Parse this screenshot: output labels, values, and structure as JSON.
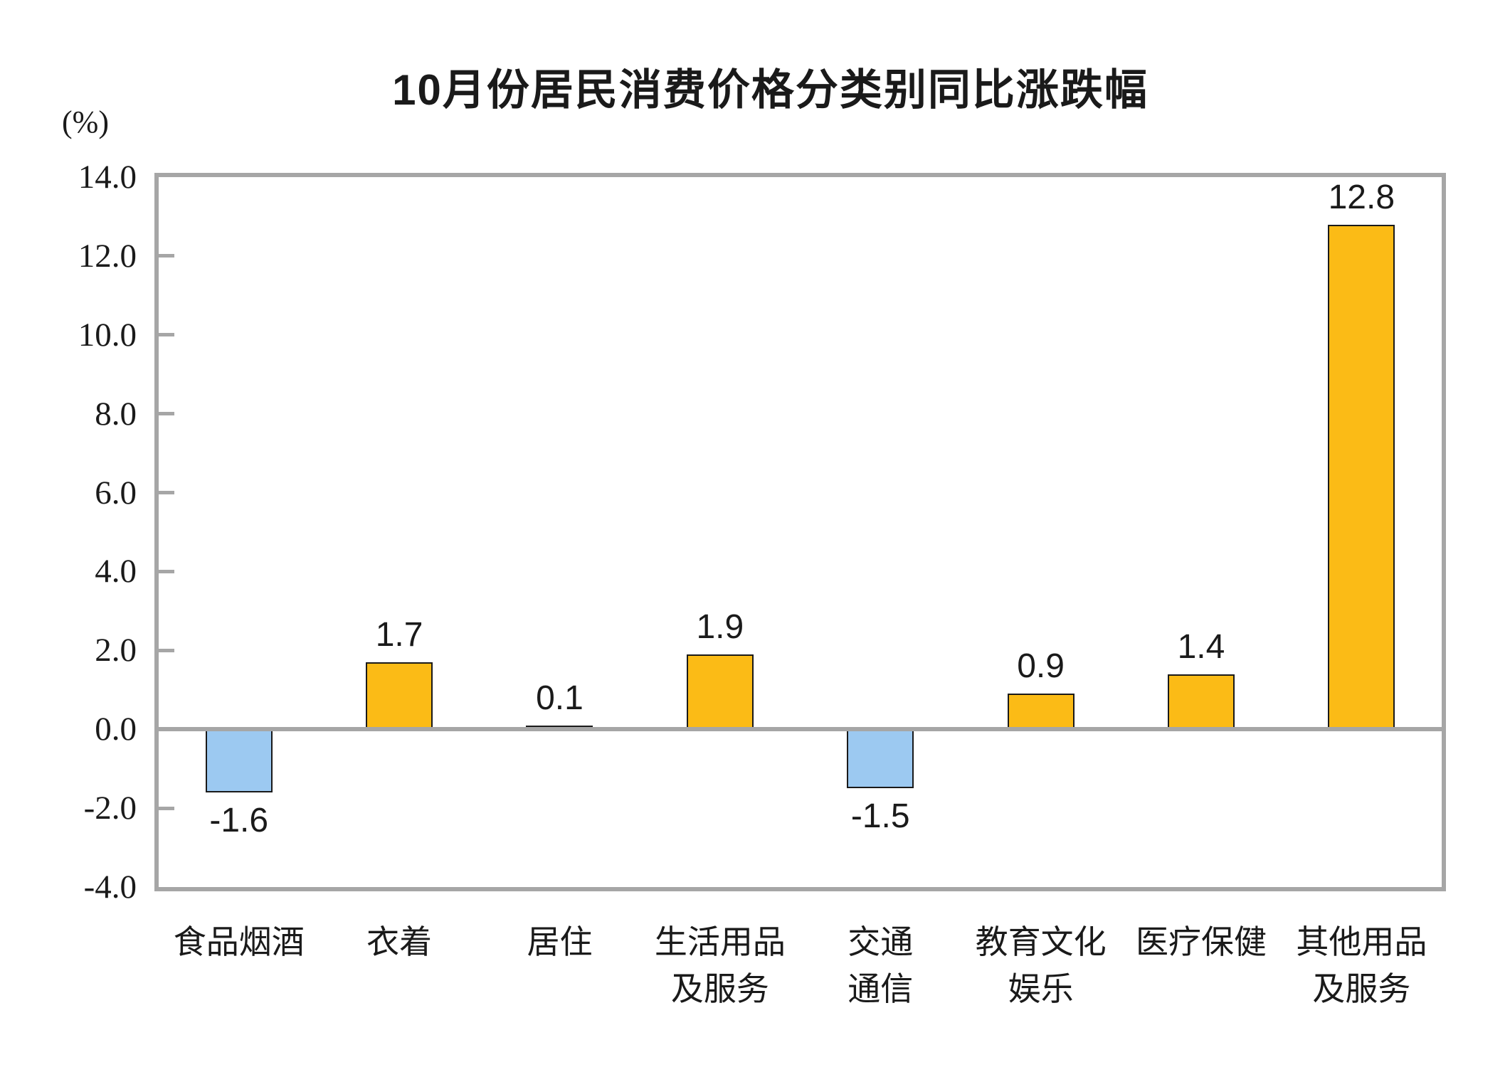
{
  "chart": {
    "title": "10月份居民消费价格分类别同比涨跌幅",
    "unit_label": "(%)"
  },
  "chart_data": {
    "type": "bar",
    "title": "10月份居民消费价格分类别同比涨跌幅",
    "ylabel": "(%)",
    "xlabel": "",
    "ylim": [
      -4.0,
      14.0
    ],
    "ytick_step": 2.0,
    "ytick_labels": [
      "14.0",
      "12.0",
      "10.0",
      "8.0",
      "6.0",
      "4.0",
      "2.0",
      "0.0",
      "-2.0",
      "-4.0"
    ],
    "ytick_values": [
      14,
      12,
      10,
      8,
      6,
      4,
      2,
      0,
      -2,
      -4
    ],
    "grid": false,
    "legend": false,
    "categories": [
      "食品烟酒",
      "衣着",
      "居住",
      "生活用品\n及服务",
      "交通\n通信",
      "教育文化\n娱乐",
      "医疗保健",
      "其他用品\n及服务"
    ],
    "values": [
      -1.6,
      1.7,
      0.1,
      1.9,
      -1.5,
      0.9,
      1.4,
      12.8
    ],
    "value_labels": [
      "-1.6",
      "1.7",
      "0.1",
      "1.9",
      "-1.5",
      "0.9",
      "1.4",
      "12.8"
    ],
    "bar_colors": [
      "#9CC9F1",
      "#FBBB16",
      "#FBBB16",
      "#FBBB16",
      "#9CC9F1",
      "#FBBB16",
      "#FBBB16",
      "#FBBB16"
    ],
    "colors": {
      "positive_fill": "#FBBB16",
      "negative_fill": "#9CC9F1",
      "bar_outline": "#1a1a1a",
      "axis_gray": "#A6A6A6",
      "text": "#1a1a1a"
    }
  }
}
